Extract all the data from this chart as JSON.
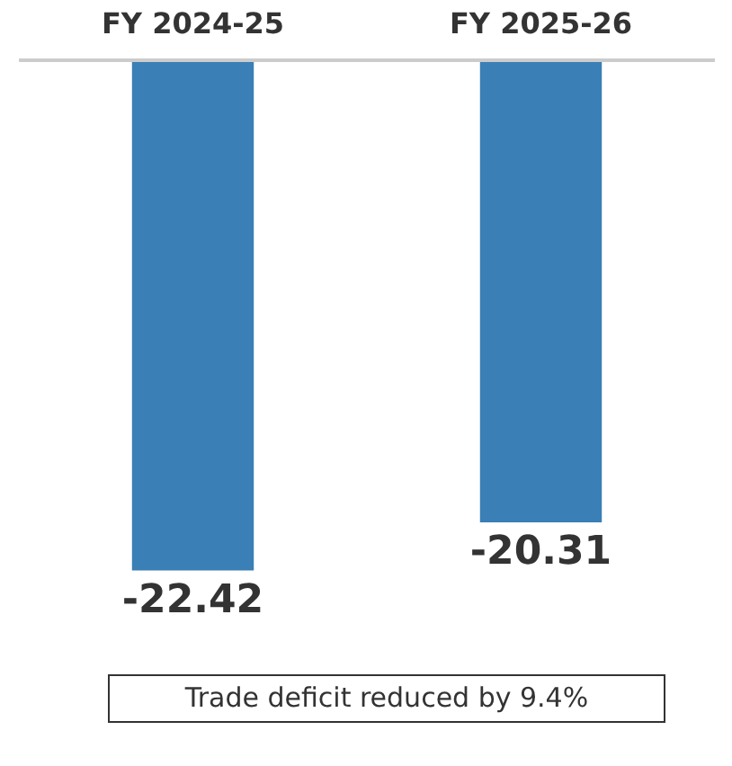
{
  "chart_data": {
    "type": "bar",
    "categories": [
      "FY 2024-25",
      "FY 2025-26"
    ],
    "values": [
      -22.42,
      -20.31
    ],
    "colors": [
      "#3a7fb5",
      "#3a7fb5"
    ],
    "data_labels": true,
    "annotations": [
      "Trade deficit reduced by 9.4%"
    ]
  }
}
